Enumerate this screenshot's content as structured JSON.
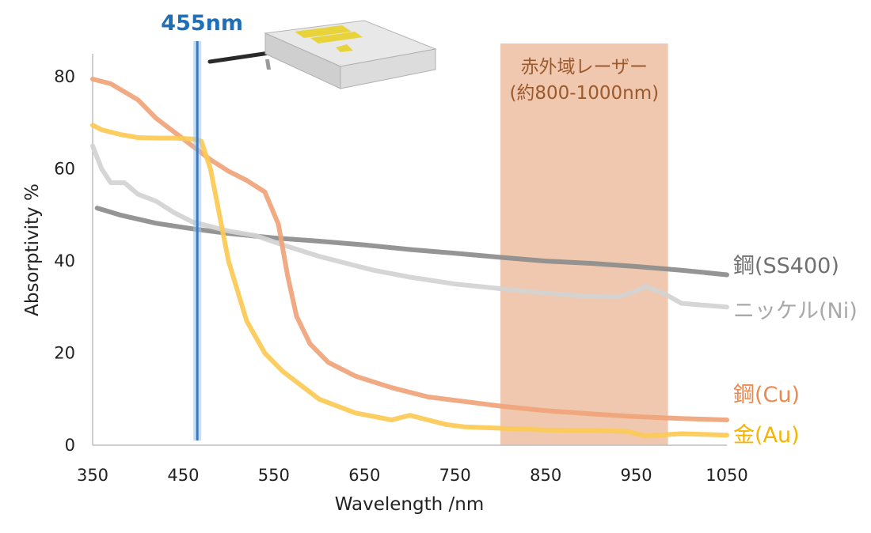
{
  "chart_data": {
    "type": "line",
    "xlabel": "Wavelength /nm",
    "ylabel": "Absorptivity %",
    "xlim": [
      350,
      1050
    ],
    "ylim": [
      0,
      85
    ],
    "xticks": [
      350,
      450,
      550,
      650,
      750,
      850,
      950,
      1050
    ],
    "yticks": [
      0,
      20,
      40,
      60,
      80
    ],
    "grid": false,
    "series": [
      {
        "name": "鋼(SS400)",
        "color": "#8c8c8c",
        "x": [
          355,
          380,
          420,
          460,
          500,
          550,
          600,
          650,
          700,
          750,
          800,
          850,
          900,
          950,
          1000,
          1050
        ],
        "y": [
          51.5,
          50.0,
          48.2,
          47.0,
          46.0,
          45.0,
          44.3,
          43.5,
          42.5,
          41.7,
          40.8,
          40.0,
          39.5,
          38.8,
          38.0,
          37.0
        ]
      },
      {
        "name": "ニッケル(Ni)",
        "color": "#d3d3d3",
        "x": [
          350,
          360,
          370,
          385,
          400,
          420,
          440,
          460,
          480,
          500,
          530,
          560,
          600,
          630,
          660,
          700,
          750,
          800,
          850,
          900,
          930,
          950,
          960,
          980,
          1000,
          1050
        ],
        "y": [
          65,
          60,
          57,
          57,
          54.5,
          53,
          50.5,
          48.5,
          47.5,
          46.5,
          45.5,
          43.5,
          41,
          39.5,
          38,
          36.5,
          35,
          34,
          33,
          32.3,
          32.2,
          33.5,
          34.5,
          33,
          30.8,
          30
        ]
      },
      {
        "name": "鋼(Cu)",
        "color": "#f0a47a",
        "x": [
          350,
          370,
          400,
          420,
          440,
          460,
          480,
          500,
          520,
          540,
          555,
          565,
          575,
          590,
          610,
          640,
          680,
          720,
          760,
          800,
          850,
          900,
          950,
          1000,
          1050
        ],
        "y": [
          79.5,
          78.5,
          75,
          71,
          68,
          65,
          62,
          59.5,
          57.5,
          55,
          48,
          37,
          28,
          22,
          18,
          15,
          12.5,
          10.5,
          9.5,
          8.5,
          7.5,
          6.8,
          6.2,
          5.8,
          5.5
        ]
      },
      {
        "name": "金(Au)",
        "color": "#fcca55",
        "x": [
          350,
          360,
          380,
          400,
          420,
          440,
          460,
          470,
          480,
          490,
          500,
          520,
          540,
          560,
          600,
          640,
          680,
          700,
          720,
          740,
          760,
          800,
          850,
          900,
          940,
          960,
          1000,
          1050
        ],
        "y": [
          69.5,
          68.5,
          67.5,
          66.8,
          66.7,
          66.7,
          66.5,
          66,
          60,
          50,
          40,
          27,
          20,
          16,
          10,
          7,
          5.5,
          6.5,
          5.5,
          4.5,
          4,
          3.7,
          3.3,
          3.2,
          3.0,
          2.0,
          2.5,
          2.2
        ]
      }
    ],
    "annotations": {
      "laser_line": {
        "x": 455,
        "label": "455nm",
        "color": "#1e6fb8"
      },
      "ir_band": {
        "x": [
          800,
          985
        ],
        "label_line1": "赤外域レーザー",
        "label_line2": "(約800-1000nm)",
        "color": "#e9b594"
      }
    }
  }
}
